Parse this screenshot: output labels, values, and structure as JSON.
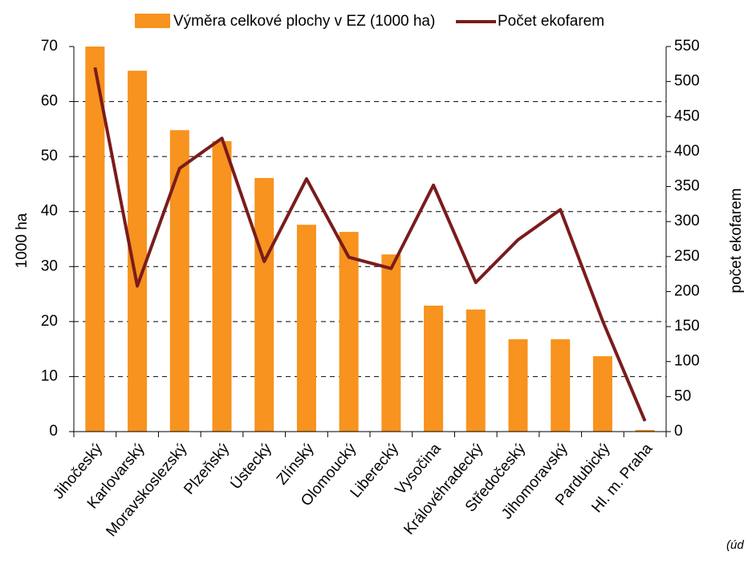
{
  "chart_data": {
    "type": "bar_line",
    "categories": [
      "Jihočeský",
      "Karlovarský",
      "Moravskoslezský",
      "Plzeňský",
      "Ústecký",
      "Zlínský",
      "Olomoucký",
      "Liberecký",
      "Vysočina",
      "Královéhradecký",
      "Středočeský",
      "Jihomoravský",
      "Pardubický",
      "Hl. m. Praha"
    ],
    "series": [
      {
        "name": "Výměra celkové plochy v EZ (1000 ha)",
        "color": "#f7931e",
        "type": "bar",
        "axis": "y",
        "values": [
          70,
          65.6,
          54.8,
          52.8,
          46.1,
          37.6,
          36.3,
          32.2,
          22.9,
          22.2,
          16.8,
          16.8,
          13.7,
          0.3
        ]
      },
      {
        "name": "Počet ekofarem",
        "color": "#7a1c1c",
        "type": "line",
        "axis": "y2",
        "values": [
          520,
          208,
          376,
          419,
          243,
          361,
          249,
          233,
          352,
          213,
          274,
          317,
          158,
          15
        ]
      }
    ],
    "ylabel": "1000 ha",
    "y2label": "počet ekofarem",
    "ylim": [
      0,
      70
    ],
    "yticks": [
      0,
      10,
      20,
      30,
      40,
      50,
      60,
      70
    ],
    "y2lim": [
      0,
      550
    ],
    "y2ticks": [
      0,
      50,
      100,
      150,
      200,
      250,
      300,
      350,
      400,
      450,
      500,
      550
    ],
    "grid": true,
    "legend": "top",
    "annotation": "(úd"
  }
}
